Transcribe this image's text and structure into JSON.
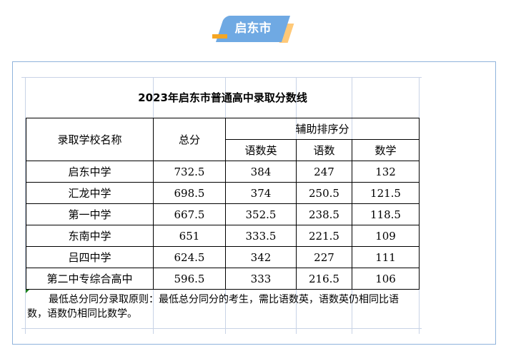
{
  "badge": {
    "label": "启东市"
  },
  "table": {
    "title": "2023年启东市普通高中录取分数线",
    "headers": {
      "school": "录取学校名称",
      "total": "总分",
      "aux": "辅助排序分",
      "sub": [
        "语数英",
        "语数",
        "数学"
      ]
    },
    "rows": [
      [
        "启东中学",
        "732.5",
        "384",
        "247",
        "132"
      ],
      [
        "汇龙中学",
        "698.5",
        "374",
        "250.5",
        "121.5"
      ],
      [
        "第一中学",
        "667.5",
        "352.5",
        "238.5",
        "118.5"
      ],
      [
        "东南中学",
        "651",
        "333.5",
        "221.5",
        "109"
      ],
      [
        "吕四中学",
        "624.5",
        "342",
        "227",
        "111"
      ],
      [
        "第二中专综合高中",
        "596.5",
        "333",
        "216.5",
        "106"
      ]
    ],
    "note": "最低总分同分录取原则：最低总分同分的考生，需比语数英，语数英仍相同比语数，语数仍相同比数学。"
  }
}
